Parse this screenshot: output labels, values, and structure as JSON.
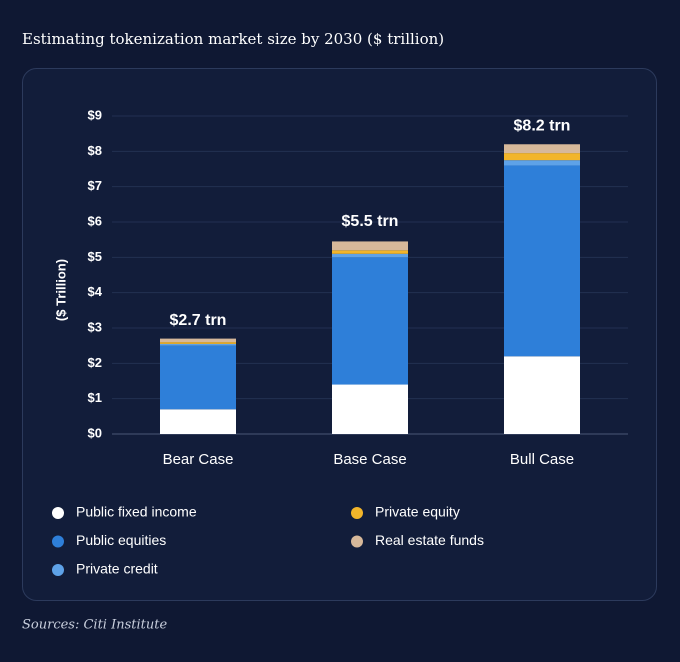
{
  "chart_data": {
    "type": "stacked_bar",
    "title": "Estimating tokenization market size by 2030 ($ trillion)",
    "y_label": "($ Trillion)",
    "source": "Sources: Citi Institute",
    "categories": [
      "Bear Case",
      "Base Case",
      "Bull Case"
    ],
    "series": [
      {
        "name": "Public fixed income",
        "color": "#ffffff",
        "values": [
          0.7,
          1.4,
          2.2
        ]
      },
      {
        "name": "Public equities",
        "color": "#2e7fd9",
        "values": [
          1.8,
          3.6,
          5.4
        ]
      },
      {
        "name": "Private credit",
        "color": "#5ea2e8",
        "values": [
          0.05,
          0.1,
          0.15
        ]
      },
      {
        "name": "Private equity",
        "color": "#f2b52a",
        "values": [
          0.05,
          0.1,
          0.2
        ]
      },
      {
        "name": "Real estate funds",
        "color": "#d6b89a",
        "values": [
          0.1,
          0.25,
          0.25
        ]
      }
    ],
    "totals": [
      2.7,
      5.5,
      8.2
    ],
    "total_labels": [
      "$2.7 trn",
      "$5.5 trn",
      "$8.2 trn"
    ],
    "ylim": [
      0,
      9
    ],
    "yticks": [
      {
        "value": 0,
        "label": "$0"
      },
      {
        "value": 1,
        "label": "$1"
      },
      {
        "value": 2,
        "label": "$2"
      },
      {
        "value": 3,
        "label": "$3"
      },
      {
        "value": 4,
        "label": "$4"
      },
      {
        "value": 5,
        "label": "$5"
      },
      {
        "value": 6,
        "label": "$6"
      },
      {
        "value": 7,
        "label": "$7"
      },
      {
        "value": 8,
        "label": "$8"
      },
      {
        "value": 9,
        "label": "$9"
      }
    ],
    "grid": true
  }
}
